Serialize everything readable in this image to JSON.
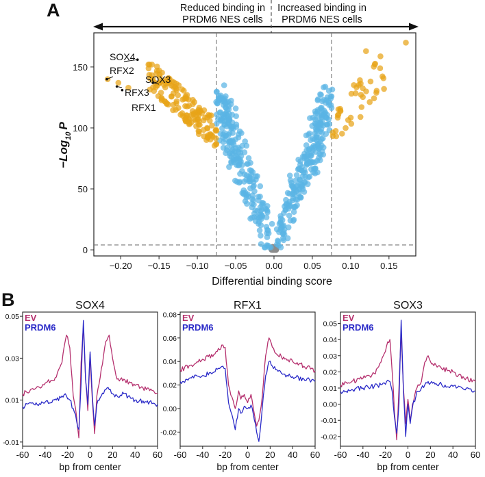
{
  "chart_data": [
    {
      "type": "scatter",
      "panel_label": "A",
      "annotation_left": [
        "Reduced binding in",
        "PRDM6 NES cells"
      ],
      "annotation_right": [
        "Increased binding in",
        "PRDM6 NES cells"
      ],
      "xlabel": "Differential binding score",
      "ylabel_prefix": "−Log",
      "ylabel_sub": "10",
      "ylabel_suffix": "P",
      "xlim": [
        -0.235,
        0.185
      ],
      "ylim": [
        -5,
        178
      ],
      "xticks": [
        -0.2,
        -0.15,
        -0.1,
        -0.05,
        0.0,
        0.05,
        0.1,
        0.15
      ],
      "xtick_labels": [
        "−0.20",
        "−0.15",
        "−0.10",
        "−0.05",
        "0.00",
        "0.05",
        "0.10",
        "0.15"
      ],
      "yticks": [
        0,
        50,
        100,
        150
      ],
      "ytick_labels": [
        "0",
        "50",
        "100",
        "150"
      ],
      "thresholds": {
        "x": [
          -0.075,
          0.075
        ],
        "y": 4
      },
      "colors": {
        "significant": "#E8A317",
        "nonsignificant": "#5AB4E5",
        "not_enriched": "#8C8C8C"
      },
      "labeled_points": [
        {
          "name": "SOX4",
          "x": -0.178,
          "y": 156
        },
        {
          "name": "RFX2",
          "x": -0.218,
          "y": 140
        },
        {
          "name": "SOX3",
          "x": -0.158,
          "y": 137
        },
        {
          "name": "RFX3",
          "x": -0.205,
          "y": 134
        },
        {
          "name": "RFX1",
          "x": -0.198,
          "y": 131
        }
      ]
    },
    {
      "type": "line",
      "panel_label": "B",
      "title": "SOX4",
      "xlabel": "bp from center",
      "xlim": [
        -60,
        60
      ],
      "ylim": [
        -0.012,
        0.052
      ],
      "xticks": [
        -60,
        -40,
        -20,
        0,
        20,
        40,
        60
      ],
      "yticks": [
        -0.01,
        0.01,
        0.03,
        0.05
      ],
      "ytick_labels": [
        "-0.01",
        "0.01",
        "0.03",
        "0.05"
      ],
      "series": [
        {
          "name": "EV",
          "color": "#B5306E",
          "points": [
            [
              -60,
              0.013
            ],
            [
              -50,
              0.015
            ],
            [
              -40,
              0.018
            ],
            [
              -30,
              0.021
            ],
            [
              -25,
              0.028
            ],
            [
              -21,
              0.041
            ],
            [
              -18,
              0.035
            ],
            [
              -15,
              0.012
            ],
            [
              -12,
              0.002
            ],
            [
              -10,
              -0.008
            ],
            [
              -8,
              0.028
            ],
            [
              -6,
              0.045
            ],
            [
              -4,
              0.02
            ],
            [
              -2,
              0.005
            ],
            [
              0,
              0.032
            ],
            [
              2,
              0.01
            ],
            [
              4,
              -0.006
            ],
            [
              6,
              0.012
            ],
            [
              10,
              0.025
            ],
            [
              14,
              0.038
            ],
            [
              17,
              0.041
            ],
            [
              20,
              0.03
            ],
            [
              24,
              0.02
            ],
            [
              30,
              0.02
            ],
            [
              40,
              0.017
            ],
            [
              50,
              0.015
            ],
            [
              60,
              0.013
            ]
          ]
        },
        {
          "name": "PRDM6",
          "color": "#2B2BC8",
          "points": [
            [
              -60,
              0.007
            ],
            [
              -50,
              0.008
            ],
            [
              -40,
              0.009
            ],
            [
              -30,
              0.01
            ],
            [
              -25,
              0.012
            ],
            [
              -21,
              0.012
            ],
            [
              -18,
              0.01
            ],
            [
              -15,
              0.006
            ],
            [
              -12,
              0.0
            ],
            [
              -10,
              -0.004
            ],
            [
              -8,
              0.018
            ],
            [
              -6,
              0.048
            ],
            [
              -4,
              0.02
            ],
            [
              -2,
              0.008
            ],
            [
              0,
              0.033
            ],
            [
              2,
              0.012
            ],
            [
              4,
              -0.002
            ],
            [
              6,
              0.008
            ],
            [
              10,
              0.012
            ],
            [
              14,
              0.015
            ],
            [
              17,
              0.015
            ],
            [
              20,
              0.013
            ],
            [
              24,
              0.012
            ],
            [
              30,
              0.013
            ],
            [
              40,
              0.01
            ],
            [
              50,
              0.009
            ],
            [
              60,
              0.008
            ]
          ]
        }
      ]
    },
    {
      "type": "line",
      "panel_label": "",
      "title": "RFX1",
      "xlabel": "bp from center",
      "xlim": [
        -60,
        60
      ],
      "ylim": [
        -0.032,
        0.082
      ],
      "xticks": [
        -60,
        -40,
        -20,
        0,
        20,
        40,
        60
      ],
      "yticks": [
        -0.02,
        0.0,
        0.02,
        0.04,
        0.06,
        0.08
      ],
      "ytick_labels": [
        "-0.02",
        "0.00",
        "0.02",
        "0.04",
        "0.06",
        "0.08"
      ],
      "series": [
        {
          "name": "EV",
          "color": "#B5306E",
          "points": [
            [
              -60,
              0.033
            ],
            [
              -50,
              0.037
            ],
            [
              -40,
              0.042
            ],
            [
              -30,
              0.046
            ],
            [
              -25,
              0.05
            ],
            [
              -22,
              0.054
            ],
            [
              -20,
              0.052
            ],
            [
              -17,
              0.02
            ],
            [
              -14,
              0.01
            ],
            [
              -11,
              0.0
            ],
            [
              -8,
              0.015
            ],
            [
              -6,
              0.008
            ],
            [
              -3,
              0.012
            ],
            [
              0,
              0.005
            ],
            [
              3,
              0.012
            ],
            [
              6,
              -0.005
            ],
            [
              8,
              -0.015
            ],
            [
              10,
              -0.01
            ],
            [
              13,
              0.01
            ],
            [
              16,
              0.045
            ],
            [
              19,
              0.06
            ],
            [
              22,
              0.052
            ],
            [
              26,
              0.046
            ],
            [
              30,
              0.044
            ],
            [
              40,
              0.04
            ],
            [
              50,
              0.036
            ],
            [
              60,
              0.032
            ]
          ]
        },
        {
          "name": "PRDM6",
          "color": "#2B2BC8",
          "points": [
            [
              -60,
              0.023
            ],
            [
              -50,
              0.026
            ],
            [
              -40,
              0.028
            ],
            [
              -30,
              0.031
            ],
            [
              -25,
              0.034
            ],
            [
              -22,
              0.036
            ],
            [
              -20,
              0.034
            ],
            [
              -17,
              0.005
            ],
            [
              -14,
              -0.005
            ],
            [
              -11,
              -0.018
            ],
            [
              -8,
              0.0
            ],
            [
              -6,
              -0.004
            ],
            [
              -3,
              0.002
            ],
            [
              0,
              0.0
            ],
            [
              3,
              0.003
            ],
            [
              6,
              -0.01
            ],
            [
              8,
              -0.02
            ],
            [
              10,
              -0.028
            ],
            [
              13,
              0.0
            ],
            [
              16,
              0.028
            ],
            [
              19,
              0.04
            ],
            [
              22,
              0.036
            ],
            [
              26,
              0.033
            ],
            [
              30,
              0.03
            ],
            [
              40,
              0.027
            ],
            [
              50,
              0.025
            ],
            [
              60,
              0.023
            ]
          ]
        }
      ]
    },
    {
      "type": "line",
      "panel_label": "",
      "title": "SOX3",
      "xlabel": "bp from center",
      "xlim": [
        -60,
        60
      ],
      "ylim": [
        -0.026,
        0.057
      ],
      "xticks": [
        -60,
        -40,
        -20,
        0,
        20,
        40,
        60
      ],
      "yticks": [
        -0.02,
        -0.01,
        0.0,
        0.01,
        0.02,
        0.03,
        0.04,
        0.05
      ],
      "ytick_labels": [
        "-0.02",
        "-0.01",
        "0.00",
        "0.01",
        "0.02",
        "0.03",
        "0.04",
        "0.05"
      ],
      "series": [
        {
          "name": "EV",
          "color": "#B5306E",
          "points": [
            [
              -60,
              0.012
            ],
            [
              -50,
              0.014
            ],
            [
              -40,
              0.016
            ],
            [
              -30,
              0.019
            ],
            [
              -24,
              0.026
            ],
            [
              -19,
              0.036
            ],
            [
              -16,
              0.04
            ],
            [
              -14,
              0.02
            ],
            [
              -12,
              -0.005
            ],
            [
              -10,
              -0.022
            ],
            [
              -8,
              0.01
            ],
            [
              -6,
              0.045
            ],
            [
              -4,
              0.01
            ],
            [
              -2,
              -0.012
            ],
            [
              0,
              0.003
            ],
            [
              2,
              -0.01
            ],
            [
              4,
              0.0
            ],
            [
              8,
              0.01
            ],
            [
              12,
              0.014
            ],
            [
              15,
              0.026
            ],
            [
              18,
              0.03
            ],
            [
              22,
              0.025
            ],
            [
              30,
              0.022
            ],
            [
              40,
              0.02
            ],
            [
              50,
              0.016
            ],
            [
              60,
              0.014
            ]
          ]
        },
        {
          "name": "PRDM6",
          "color": "#2B2BC8",
          "points": [
            [
              -60,
              0.008
            ],
            [
              -50,
              0.009
            ],
            [
              -40,
              0.01
            ],
            [
              -30,
              0.011
            ],
            [
              -24,
              0.012
            ],
            [
              -19,
              0.014
            ],
            [
              -16,
              0.014
            ],
            [
              -14,
              0.008
            ],
            [
              -12,
              -0.008
            ],
            [
              -10,
              -0.018
            ],
            [
              -8,
              0.0
            ],
            [
              -6,
              0.052
            ],
            [
              -4,
              0.008
            ],
            [
              -2,
              -0.02
            ],
            [
              0,
              0.0
            ],
            [
              2,
              -0.012
            ],
            [
              4,
              -0.002
            ],
            [
              8,
              0.008
            ],
            [
              12,
              0.01
            ],
            [
              15,
              0.012
            ],
            [
              18,
              0.014
            ],
            [
              22,
              0.013
            ],
            [
              30,
              0.012
            ],
            [
              40,
              0.011
            ],
            [
              50,
              0.009
            ],
            [
              60,
              0.008
            ]
          ]
        }
      ]
    }
  ]
}
